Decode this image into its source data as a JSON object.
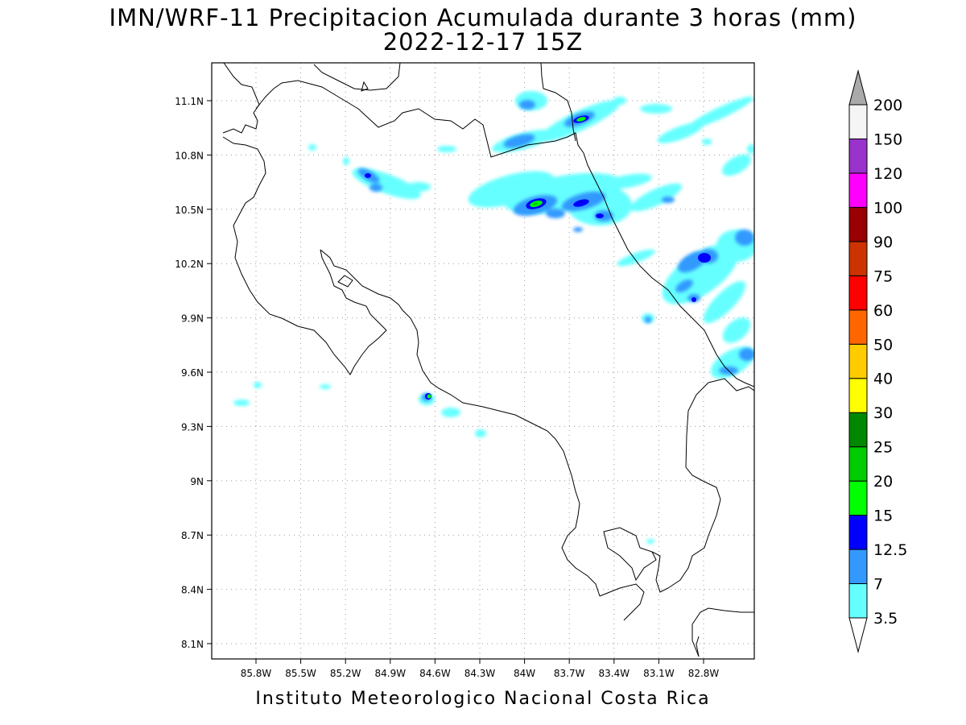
{
  "title_line1": "IMN/WRF-11 Precipitacion Acumulada durante 3 horas (mm)",
  "title_line2": "2022-12-17 15Z",
  "credit": "Instituto Meteorologico Nacional Costa Rica",
  "map": {
    "lon_ticks": [
      "85.8W",
      "85.5W",
      "85.2W",
      "84.9W",
      "84.6W",
      "84.3W",
      "84W",
      "83.7W",
      "83.4W",
      "83.1W",
      "82.8W"
    ],
    "lat_ticks": [
      "11.1N",
      "10.8N",
      "10.5N",
      "10.2N",
      "9.9N",
      "9.6N",
      "9.3N",
      "9N",
      "8.7N",
      "8.4N",
      "8.1N"
    ],
    "grid": true
  },
  "colorbar": {
    "levels": [
      "3.5",
      "7",
      "12.5",
      "15",
      "20",
      "25",
      "30",
      "40",
      "50",
      "60",
      "75",
      "90",
      "100",
      "120",
      "150",
      "200"
    ],
    "colors": [
      "#66ffff",
      "#3399ff",
      "#0000ff",
      "#00ff00",
      "#00cc00",
      "#008800",
      "#ffff00",
      "#ffcc00",
      "#ff6600",
      "#ff0000",
      "#cc3300",
      "#990000",
      "#ff00ff",
      "#9933cc",
      "#f5f5f5",
      "#aaaaaa"
    ]
  },
  "chart_data": {
    "type": "heatmap",
    "variable": "Precipitacion Acumulada 3 horas (mm)",
    "xlim": [
      "85.95W",
      "82.6W"
    ],
    "ylim": [
      "8.0N",
      "11.3N"
    ],
    "precip_cells": [
      {
        "lon": -84.94,
        "lat": 10.65,
        "level": "7"
      },
      {
        "lon": -84.8,
        "lat": 10.58,
        "level": "3.5"
      },
      {
        "lon": -84.6,
        "lat": 9.46,
        "level": "20"
      },
      {
        "lon": -84.45,
        "lat": 9.38,
        "level": "7"
      },
      {
        "lon": -84.24,
        "lat": 9.25,
        "level": "7"
      },
      {
        "lon": -83.67,
        "lat": 10.98,
        "level": "20"
      },
      {
        "lon": -83.95,
        "lat": 11.06,
        "level": "7"
      },
      {
        "lon": -83.94,
        "lat": 10.52,
        "level": "20"
      },
      {
        "lon": -83.6,
        "lat": 10.54,
        "level": "15"
      },
      {
        "lon": -83.54,
        "lat": 10.45,
        "level": "12.5"
      },
      {
        "lon": -83.3,
        "lat": 10.66,
        "level": "3.5"
      },
      {
        "lon": -83.02,
        "lat": 10.55,
        "level": "7"
      },
      {
        "lon": -82.8,
        "lat": 10.25,
        "level": "12.5"
      },
      {
        "lon": -82.97,
        "lat": 10.1,
        "level": "7"
      },
      {
        "lon": -82.85,
        "lat": 9.99,
        "level": "12.5"
      },
      {
        "lon": -82.64,
        "lat": 9.71,
        "level": "7"
      },
      {
        "lon": -82.75,
        "lat": 9.6,
        "level": "7"
      },
      {
        "lon": -82.66,
        "lat": 10.4,
        "level": "12.5"
      },
      {
        "lon": -82.8,
        "lat": 10.85,
        "level": "3.5"
      }
    ]
  }
}
